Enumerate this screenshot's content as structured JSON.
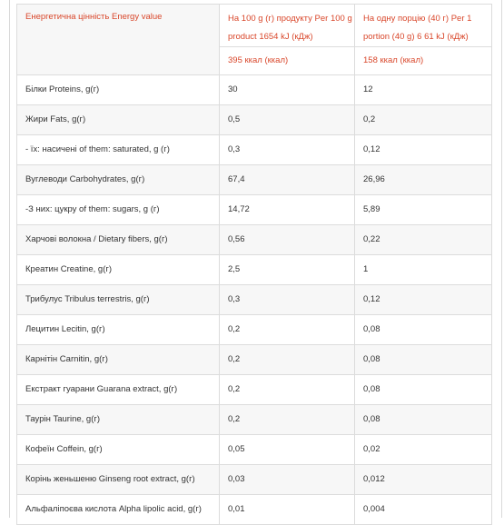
{
  "table": {
    "energy_label": "Енергетична цінність Energy value",
    "per100_header": "На 100 g (г) продукту Per 100 g product 1654 kJ (кДж)",
    "per100_kcal": "395 ккал (ккал)",
    "portion_header": "На одну порцію (40 г) Per 1 portion (40 g) 6 61 kJ (кДж)",
    "portion_kcal": "158 ккал (ккал)",
    "rows": [
      {
        "name": "Білки Proteins, g(г)",
        "per100": "30",
        "portion": "12"
      },
      {
        "name": "Жири Fats, g(г)",
        "per100": "0,5",
        "portion": "0,2"
      },
      {
        "name": "- їх: насичені of them: saturated, g (г)",
        "per100": "0,3",
        "portion": "0,12"
      },
      {
        "name": "Вуглеводи Carbohydrates, g(г)",
        "per100": "67,4",
        "portion": "26,96"
      },
      {
        "name": "-З них: цукру of them: sugars, g (г)",
        "per100": "14,72",
        "portion": "5,89"
      },
      {
        "name": "Харчові волокна / Dietary fibers, g(г)",
        "per100": "0,56",
        "portion": "0,22"
      },
      {
        "name": "Креатин Creatine, g(г)",
        "per100": "2,5",
        "portion": "1"
      },
      {
        "name": "Трибулус Tribulus terrestris, g(г)",
        "per100": "0,3",
        "portion": "0,12"
      },
      {
        "name": "Лецитин Lecitin, g(г)",
        "per100": "0,2",
        "portion": "0,08"
      },
      {
        "name": "Карнітін Carnitin, g(г)",
        "per100": "0,2",
        "portion": "0,08"
      },
      {
        "name": "Екстракт гуарани Guarana extract, g(г)",
        "per100": "0,2",
        "portion": "0,08"
      },
      {
        "name": "Таурін Taurine, g(г)",
        "per100": "0,2",
        "portion": "0,08"
      },
      {
        "name": "Кофеїн Coffein, g(г)",
        "per100": "0,05",
        "portion": "0,02"
      },
      {
        "name": "Корінь женьшеню Ginseng root extract, g(г)",
        "per100": "0,03",
        "portion": "0,012"
      },
      {
        "name": "Альфаліпоєва кислота Alpha lipolic acid, g(г)",
        "per100": "0,01",
        "portion": "0,004"
      }
    ]
  },
  "colors": {
    "accent": "#d9472b",
    "row_alt": "#f7f7f7",
    "border": "#dcdcdc"
  }
}
